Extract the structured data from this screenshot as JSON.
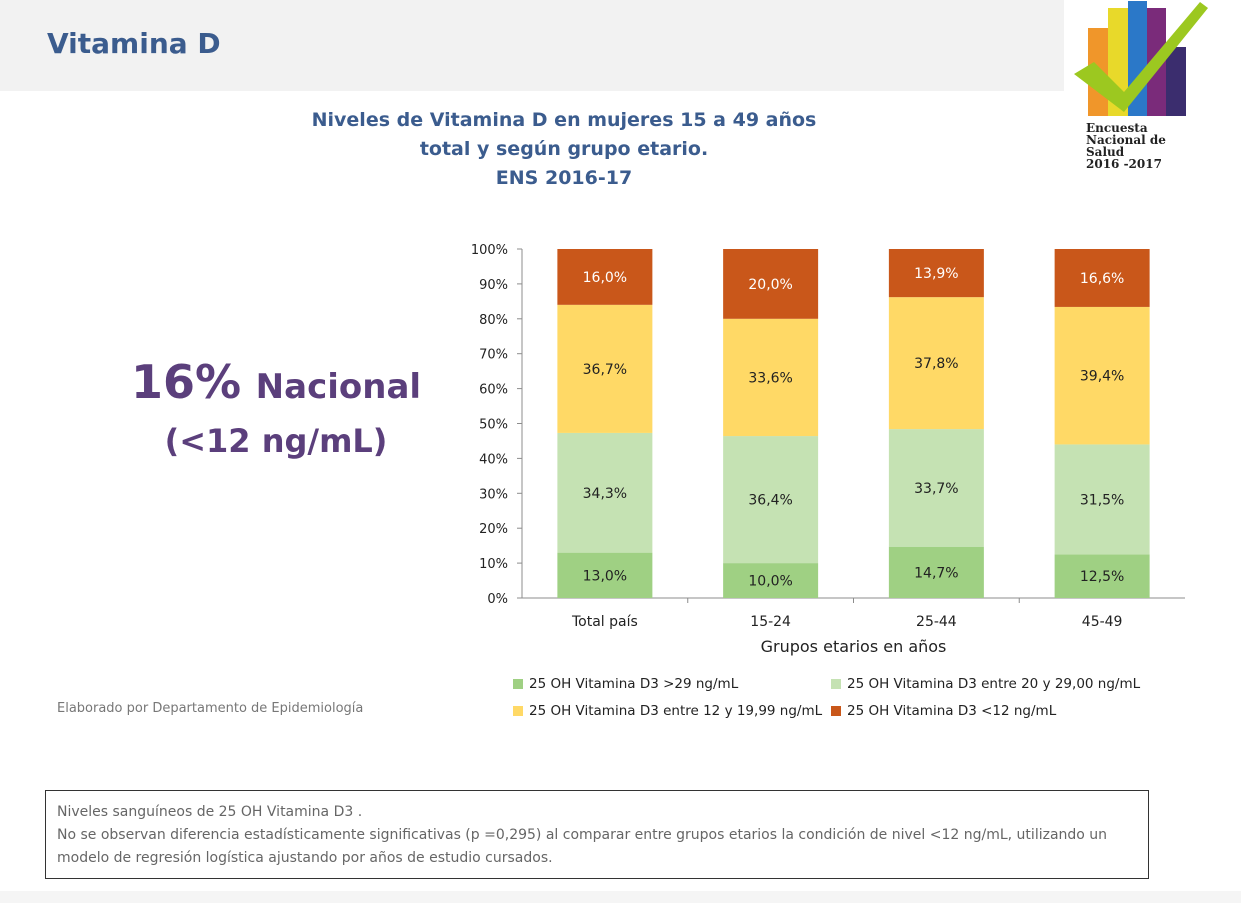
{
  "page": {
    "title": "Vitamina D"
  },
  "logo": {
    "line1": "Encuesta",
    "line2": "Nacional de",
    "line3": "Salud",
    "line4": "2016 -2017"
  },
  "kpi": {
    "value": "16%",
    "label": "Nacional",
    "unit": "(<12 ng/mL)"
  },
  "credit": "Elaborado por Departamento de Epidemiología",
  "note": {
    "line1": "Niveles sanguíneos de 25 OH Vitamina D3 .",
    "line2": "No se observan diferencia estadísticamente significativas (p =0,295) al comparar entre  grupos etarios la condición de nivel <12 ng/mL, utilizando un",
    "line3": "modelo de regresión logística ajustando por  años de estudio cursados."
  },
  "chart_data": {
    "type": "bar",
    "stacked": true,
    "title_lines": [
      "Niveles de Vitamina D en mujeres 15 a 49 años",
      "total y según grupo etario.",
      "ENS  2016-17"
    ],
    "xlabel": "Grupos etarios en años",
    "ylabel": "",
    "ylim": [
      0,
      100
    ],
    "yticks": [
      "0%",
      "10%",
      "20%",
      "30%",
      "40%",
      "50%",
      "60%",
      "70%",
      "80%",
      "90%",
      "100%"
    ],
    "categories": [
      "Total país",
      "15-24",
      "25-44",
      "45-49"
    ],
    "series": [
      {
        "name": "25 OH Vitamina D3 >29 ng/mL",
        "color": "#9fd083",
        "values": [
          13.0,
          10.0,
          14.7,
          12.5
        ],
        "labels": [
          "13,0%",
          "10,0%",
          "14,7%",
          "12,5%"
        ]
      },
      {
        "name": "25 OH Vitamina D3 entre 20 y 29,00 ng/mL",
        "color": "#c5e2b3",
        "values": [
          34.3,
          36.4,
          33.7,
          31.5
        ],
        "labels": [
          "34,3%",
          "36,4%",
          "33,7%",
          "31,5%"
        ]
      },
      {
        "name": "25 OH Vitamina D3 entre 12 y 19,99 ng/mL",
        "color": "#ffd966",
        "values": [
          36.7,
          33.6,
          37.8,
          39.4
        ],
        "labels": [
          "36,7%",
          "33,6%",
          "37,8%",
          "39,4%"
        ]
      },
      {
        "name": "25 OH Vitamina D3 <12 ng/mL",
        "color": "#c9571a",
        "values": [
          16.0,
          20.0,
          13.9,
          16.6
        ],
        "labels": [
          "16,0%",
          "20,0%",
          "13,9%",
          "16,6%"
        ]
      }
    ],
    "legend_placement": "bottom",
    "grid": false
  }
}
